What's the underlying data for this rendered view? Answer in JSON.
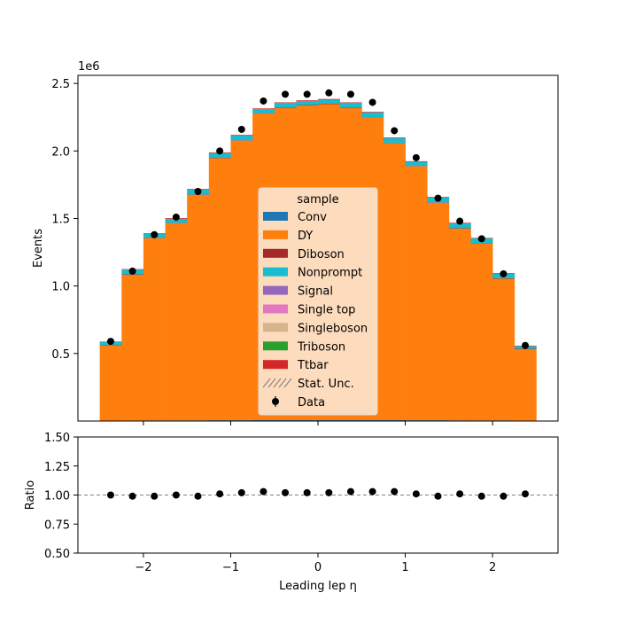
{
  "chart_data": [
    {
      "type": "bar",
      "panel": "main",
      "title": "",
      "xlabel": "",
      "ylabel": "Events",
      "y_scale_label": "1e6",
      "xlim": [
        -2.75,
        2.75
      ],
      "ylim": [
        0,
        2.56
      ],
      "yticks": [
        0.5,
        1.0,
        1.5,
        2.0,
        2.5
      ],
      "ytick_labels": [
        "0.5",
        "1.0",
        "1.5",
        "2.0",
        "2.5"
      ],
      "xticks": [
        -2,
        -1,
        0,
        1,
        2
      ],
      "bin_edges": [
        -2.5,
        -2.25,
        -2.0,
        -1.75,
        -1.5,
        -1.25,
        -1.0,
        -0.75,
        -0.5,
        -0.25,
        0.0,
        0.25,
        0.5,
        0.75,
        1.0,
        1.25,
        1.5,
        1.75,
        2.0,
        2.25,
        2.5
      ],
      "stacked": true,
      "series": [
        {
          "name": "Conv",
          "color": "#1f77b4",
          "values": [
            0.003,
            0.004,
            0.005,
            0.005,
            0.005,
            0.006,
            0.006,
            0.007,
            0.007,
            0.007,
            0.007,
            0.007,
            0.007,
            0.007,
            0.006,
            0.006,
            0.005,
            0.005,
            0.005,
            0.004
          ]
        },
        {
          "name": "DY",
          "color": "#ff7f0e",
          "values": [
            0.56,
            1.08,
            1.35,
            1.46,
            1.67,
            1.94,
            2.07,
            2.27,
            2.31,
            2.33,
            2.34,
            2.31,
            2.24,
            2.05,
            1.88,
            1.61,
            1.42,
            1.31,
            1.05,
            0.53
          ]
        },
        {
          "name": "Diboson",
          "color": "#a52a2a",
          "values": [
            0.001,
            0.002,
            0.002,
            0.003,
            0.003,
            0.003,
            0.003,
            0.003,
            0.003,
            0.003,
            0.003,
            0.003,
            0.003,
            0.003,
            0.003,
            0.003,
            0.003,
            0.002,
            0.002,
            0.001
          ]
        },
        {
          "name": "Nonprompt",
          "color": "#17becf",
          "values": [
            0.022,
            0.035,
            0.03,
            0.03,
            0.035,
            0.035,
            0.035,
            0.03,
            0.035,
            0.03,
            0.03,
            0.035,
            0.035,
            0.035,
            0.03,
            0.035,
            0.035,
            0.035,
            0.035,
            0.02
          ]
        },
        {
          "name": "Signal",
          "color": "#9467bd",
          "values": [
            0,
            0,
            0,
            0,
            0,
            0,
            0,
            0,
            0,
            0,
            0,
            0,
            0,
            0,
            0,
            0,
            0,
            0,
            0,
            0
          ]
        },
        {
          "name": "Single top",
          "color": "#e377c2",
          "values": [
            0,
            0,
            0,
            0,
            0,
            0,
            0,
            0,
            0,
            0,
            0,
            0,
            0,
            0,
            0,
            0,
            0,
            0,
            0,
            0
          ]
        },
        {
          "name": "Singleboson",
          "color": "#d8b48c",
          "values": [
            0,
            0,
            0,
            0,
            0,
            0,
            0,
            0,
            0,
            0,
            0,
            0,
            0,
            0,
            0,
            0,
            0,
            0,
            0,
            0
          ]
        },
        {
          "name": "Triboson",
          "color": "#2ca02c",
          "values": [
            0,
            0,
            0,
            0,
            0,
            0,
            0,
            0,
            0,
            0,
            0,
            0,
            0,
            0,
            0,
            0,
            0,
            0,
            0,
            0
          ]
        },
        {
          "name": "Ttbar",
          "color": "#d62728",
          "values": [
            0.003,
            0.004,
            0.004,
            0.005,
            0.005,
            0.005,
            0.005,
            0.005,
            0.005,
            0.005,
            0.005,
            0.005,
            0.005,
            0.005,
            0.005,
            0.005,
            0.005,
            0.004,
            0.004,
            0.003
          ]
        }
      ],
      "stat_unc_label": "Stat. Unc.",
      "data": {
        "name": "Data",
        "x": [
          -2.375,
          -2.125,
          -1.875,
          -1.625,
          -1.375,
          -1.125,
          -0.875,
          -0.625,
          -0.375,
          -0.125,
          0.125,
          0.375,
          0.625,
          0.875,
          1.125,
          1.375,
          1.625,
          1.875,
          2.125,
          2.375
        ],
        "y": [
          0.59,
          1.11,
          1.38,
          1.51,
          1.7,
          2.0,
          2.16,
          2.37,
          2.42,
          2.42,
          2.43,
          2.42,
          2.36,
          2.15,
          1.95,
          1.65,
          1.48,
          1.35,
          1.09,
          0.56
        ]
      },
      "legend": {
        "title": "sample",
        "placement": "center"
      }
    },
    {
      "type": "scatter",
      "panel": "ratio",
      "xlabel": "Leading lep η",
      "ylabel": "Ratio",
      "xlim": [
        -2.75,
        2.75
      ],
      "ylim": [
        0.5,
        1.5
      ],
      "yticks": [
        0.5,
        0.75,
        1.0,
        1.25,
        1.5
      ],
      "ytick_labels": [
        "0.50",
        "0.75",
        "1.00",
        "1.25",
        "1.50"
      ],
      "xticks": [
        -2,
        -1,
        0,
        1,
        2
      ],
      "xtick_labels": [
        "−2",
        "−1",
        "0",
        "1",
        "2"
      ],
      "reference_line": 1.0,
      "x": [
        -2.375,
        -2.125,
        -1.875,
        -1.625,
        -1.375,
        -1.125,
        -0.875,
        -0.625,
        -0.375,
        -0.125,
        0.125,
        0.375,
        0.625,
        0.875,
        1.125,
        1.375,
        1.625,
        1.875,
        2.125,
        2.375
      ],
      "y": [
        1.0,
        0.99,
        0.99,
        1.0,
        0.99,
        1.01,
        1.02,
        1.03,
        1.02,
        1.02,
        1.02,
        1.03,
        1.03,
        1.03,
        1.01,
        0.99,
        1.01,
        0.99,
        0.99,
        1.01
      ]
    }
  ]
}
